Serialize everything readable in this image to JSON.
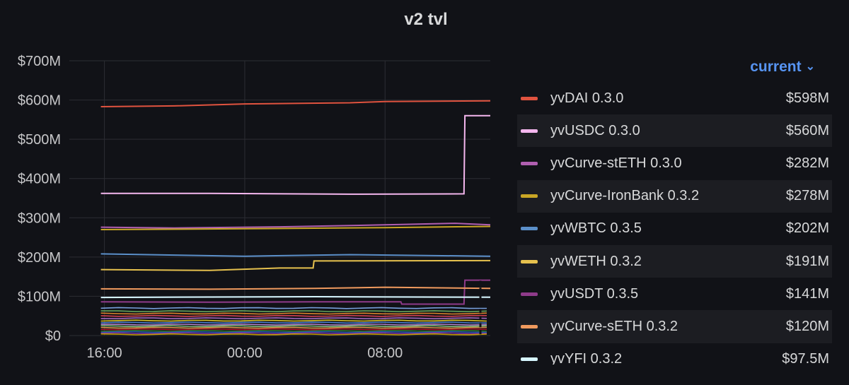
{
  "panel": {
    "title": "v2 tvl",
    "legend_sort_label": "current"
  },
  "chart_data": {
    "type": "line",
    "title": "v2 tvl",
    "x_ticks": [
      "16:00",
      "00:00",
      "08:00"
    ],
    "y_ticks": [
      "$0",
      "$100M",
      "$200M",
      "$300M",
      "$400M",
      "$500M",
      "$600M",
      "$700M"
    ],
    "ylim": [
      0,
      700
    ],
    "y_unit": "$M",
    "xlim_hours": [
      -2,
      22
    ],
    "grid": true,
    "legend_placement": "right",
    "series": [
      {
        "name": "yvDAI 0.3.0",
        "color": "#e0533f",
        "current": "$598M",
        "points": [
          [
            -0.2,
            583
          ],
          [
            4,
            585
          ],
          [
            8,
            590
          ],
          [
            14,
            593
          ],
          [
            16,
            596
          ],
          [
            22,
            598
          ]
        ]
      },
      {
        "name": "yvUSDC 0.3.0",
        "color": "#f5b7ef",
        "current": "$560M",
        "points": [
          [
            -0.2,
            362
          ],
          [
            6,
            362
          ],
          [
            14,
            360
          ],
          [
            20.5,
            361
          ],
          [
            20.55,
            560
          ],
          [
            22,
            560
          ]
        ]
      },
      {
        "name": "yvCurve-stETH 0.3.0",
        "color": "#b05fb0",
        "current": "$282M",
        "points": [
          [
            -0.2,
            276
          ],
          [
            4,
            274
          ],
          [
            10,
            277
          ],
          [
            16,
            282
          ],
          [
            20,
            286
          ],
          [
            22,
            282
          ]
        ]
      },
      {
        "name": "yvCurve-IronBank 0.3.2",
        "color": "#c9a625",
        "current": "$278M",
        "points": [
          [
            -0.2,
            270
          ],
          [
            8,
            272
          ],
          [
            16,
            275
          ],
          [
            22,
            278
          ]
        ]
      },
      {
        "name": "yvWBTC 0.3.5",
        "color": "#5b8fc9",
        "current": "$202M",
        "points": [
          [
            -0.2,
            208
          ],
          [
            4,
            205
          ],
          [
            8,
            202
          ],
          [
            14,
            206
          ],
          [
            22,
            202
          ]
        ]
      },
      {
        "name": "yvWETH 0.3.2",
        "color": "#e6c14e",
        "current": "$191M",
        "points": [
          [
            -0.2,
            168
          ],
          [
            6,
            166
          ],
          [
            10,
            172
          ],
          [
            11.9,
            172
          ],
          [
            11.95,
            190
          ],
          [
            22,
            191
          ]
        ]
      },
      {
        "name": "yvUSDT 0.3.5",
        "color": "#8f3b8a",
        "current": "$141M",
        "points": [
          [
            -0.2,
            86
          ],
          [
            6,
            85
          ],
          [
            12,
            86
          ],
          [
            16.9,
            86
          ],
          [
            16.95,
            80
          ],
          [
            20.5,
            80
          ],
          [
            20.55,
            141
          ],
          [
            22,
            141
          ]
        ]
      },
      {
        "name": "yvCurve-sETH 0.3.2",
        "color": "#f09a5e",
        "current": "$120M",
        "points": [
          [
            -0.2,
            119
          ],
          [
            6,
            118
          ],
          [
            12,
            120
          ],
          [
            16,
            123
          ],
          [
            22,
            120
          ]
        ]
      },
      {
        "name": "yvYFI 0.3.2",
        "color": "#d6f6ff",
        "current": "$97.5M",
        "points": [
          [
            -0.2,
            97
          ],
          [
            6,
            98
          ],
          [
            12,
            99
          ],
          [
            22,
            97.5
          ]
        ]
      }
    ]
  }
}
